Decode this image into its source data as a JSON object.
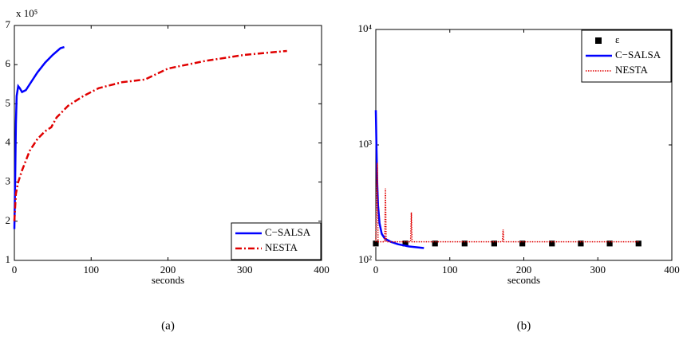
{
  "chart_data": [
    {
      "type": "line",
      "caption": "(a)",
      "xlabel": "seconds",
      "y_multiplier": "x 10⁵",
      "xlim": [
        0,
        400
      ],
      "xticks": [
        0,
        100,
        200,
        300,
        400
      ],
      "ylim": [
        1,
        7
      ],
      "yticks": [
        1,
        2,
        3,
        4,
        5,
        6,
        7
      ],
      "legend": "lower right",
      "series": [
        {
          "name": "C−SALSA",
          "color": "#0000ff",
          "style": "solid",
          "x": [
            0,
            1,
            2,
            3,
            5,
            7,
            10,
            15,
            20,
            30,
            40,
            50,
            60,
            65
          ],
          "values": [
            1.8,
            3.0,
            4.5,
            5.2,
            5.45,
            5.4,
            5.3,
            5.35,
            5.5,
            5.8,
            6.05,
            6.25,
            6.42,
            6.45
          ]
        },
        {
          "name": "NESTA",
          "color": "#e00000",
          "style": "dashdot",
          "x": [
            0,
            2,
            5,
            10,
            20,
            30,
            40,
            48,
            55,
            70,
            90,
            110,
            140,
            170,
            200,
            250,
            300,
            355
          ],
          "values": [
            2.0,
            2.7,
            3.0,
            3.3,
            3.8,
            4.1,
            4.3,
            4.4,
            4.65,
            4.95,
            5.2,
            5.4,
            5.55,
            5.62,
            5.9,
            6.1,
            6.25,
            6.35
          ]
        }
      ]
    },
    {
      "type": "line",
      "caption": "(b)",
      "xlabel": "seconds",
      "xlim": [
        0,
        400
      ],
      "xticks": [
        0,
        100,
        200,
        300,
        400
      ],
      "ylim": [
        100,
        10000
      ],
      "log_y": true,
      "yticks": [
        {
          "value": 100,
          "label": "10²"
        },
        {
          "value": 1000,
          "label": "10³"
        },
        {
          "value": 10000,
          "label": "10⁴"
        }
      ],
      "legend": "upper right",
      "series": [
        {
          "name": "ε",
          "color": "#000000",
          "style": "none",
          "marker": "square",
          "x": [
            0,
            40,
            80,
            120,
            160,
            198,
            238,
            277,
            316,
            355
          ],
          "values": [
            140,
            140,
            140,
            140,
            140,
            140,
            140,
            140,
            140,
            140
          ]
        },
        {
          "name": "C−SALSA",
          "color": "#0000ff",
          "style": "solid",
          "x": [
            0,
            1,
            2,
            3,
            5,
            8,
            12,
            20,
            30,
            45,
            65
          ],
          "values": [
            2000,
            900,
            450,
            300,
            210,
            170,
            155,
            145,
            138,
            132,
            128
          ]
        },
        {
          "name": "NESTA",
          "color": "#e00000",
          "style": "dotted",
          "x": [
            0,
            2,
            3,
            5,
            12,
            13,
            14,
            47,
            48,
            49,
            171,
            172,
            173,
            355
          ],
          "values": [
            145,
            700,
            145,
            145,
            145,
            420,
            145,
            145,
            260,
            145,
            145,
            185,
            145,
            145
          ]
        }
      ]
    }
  ]
}
